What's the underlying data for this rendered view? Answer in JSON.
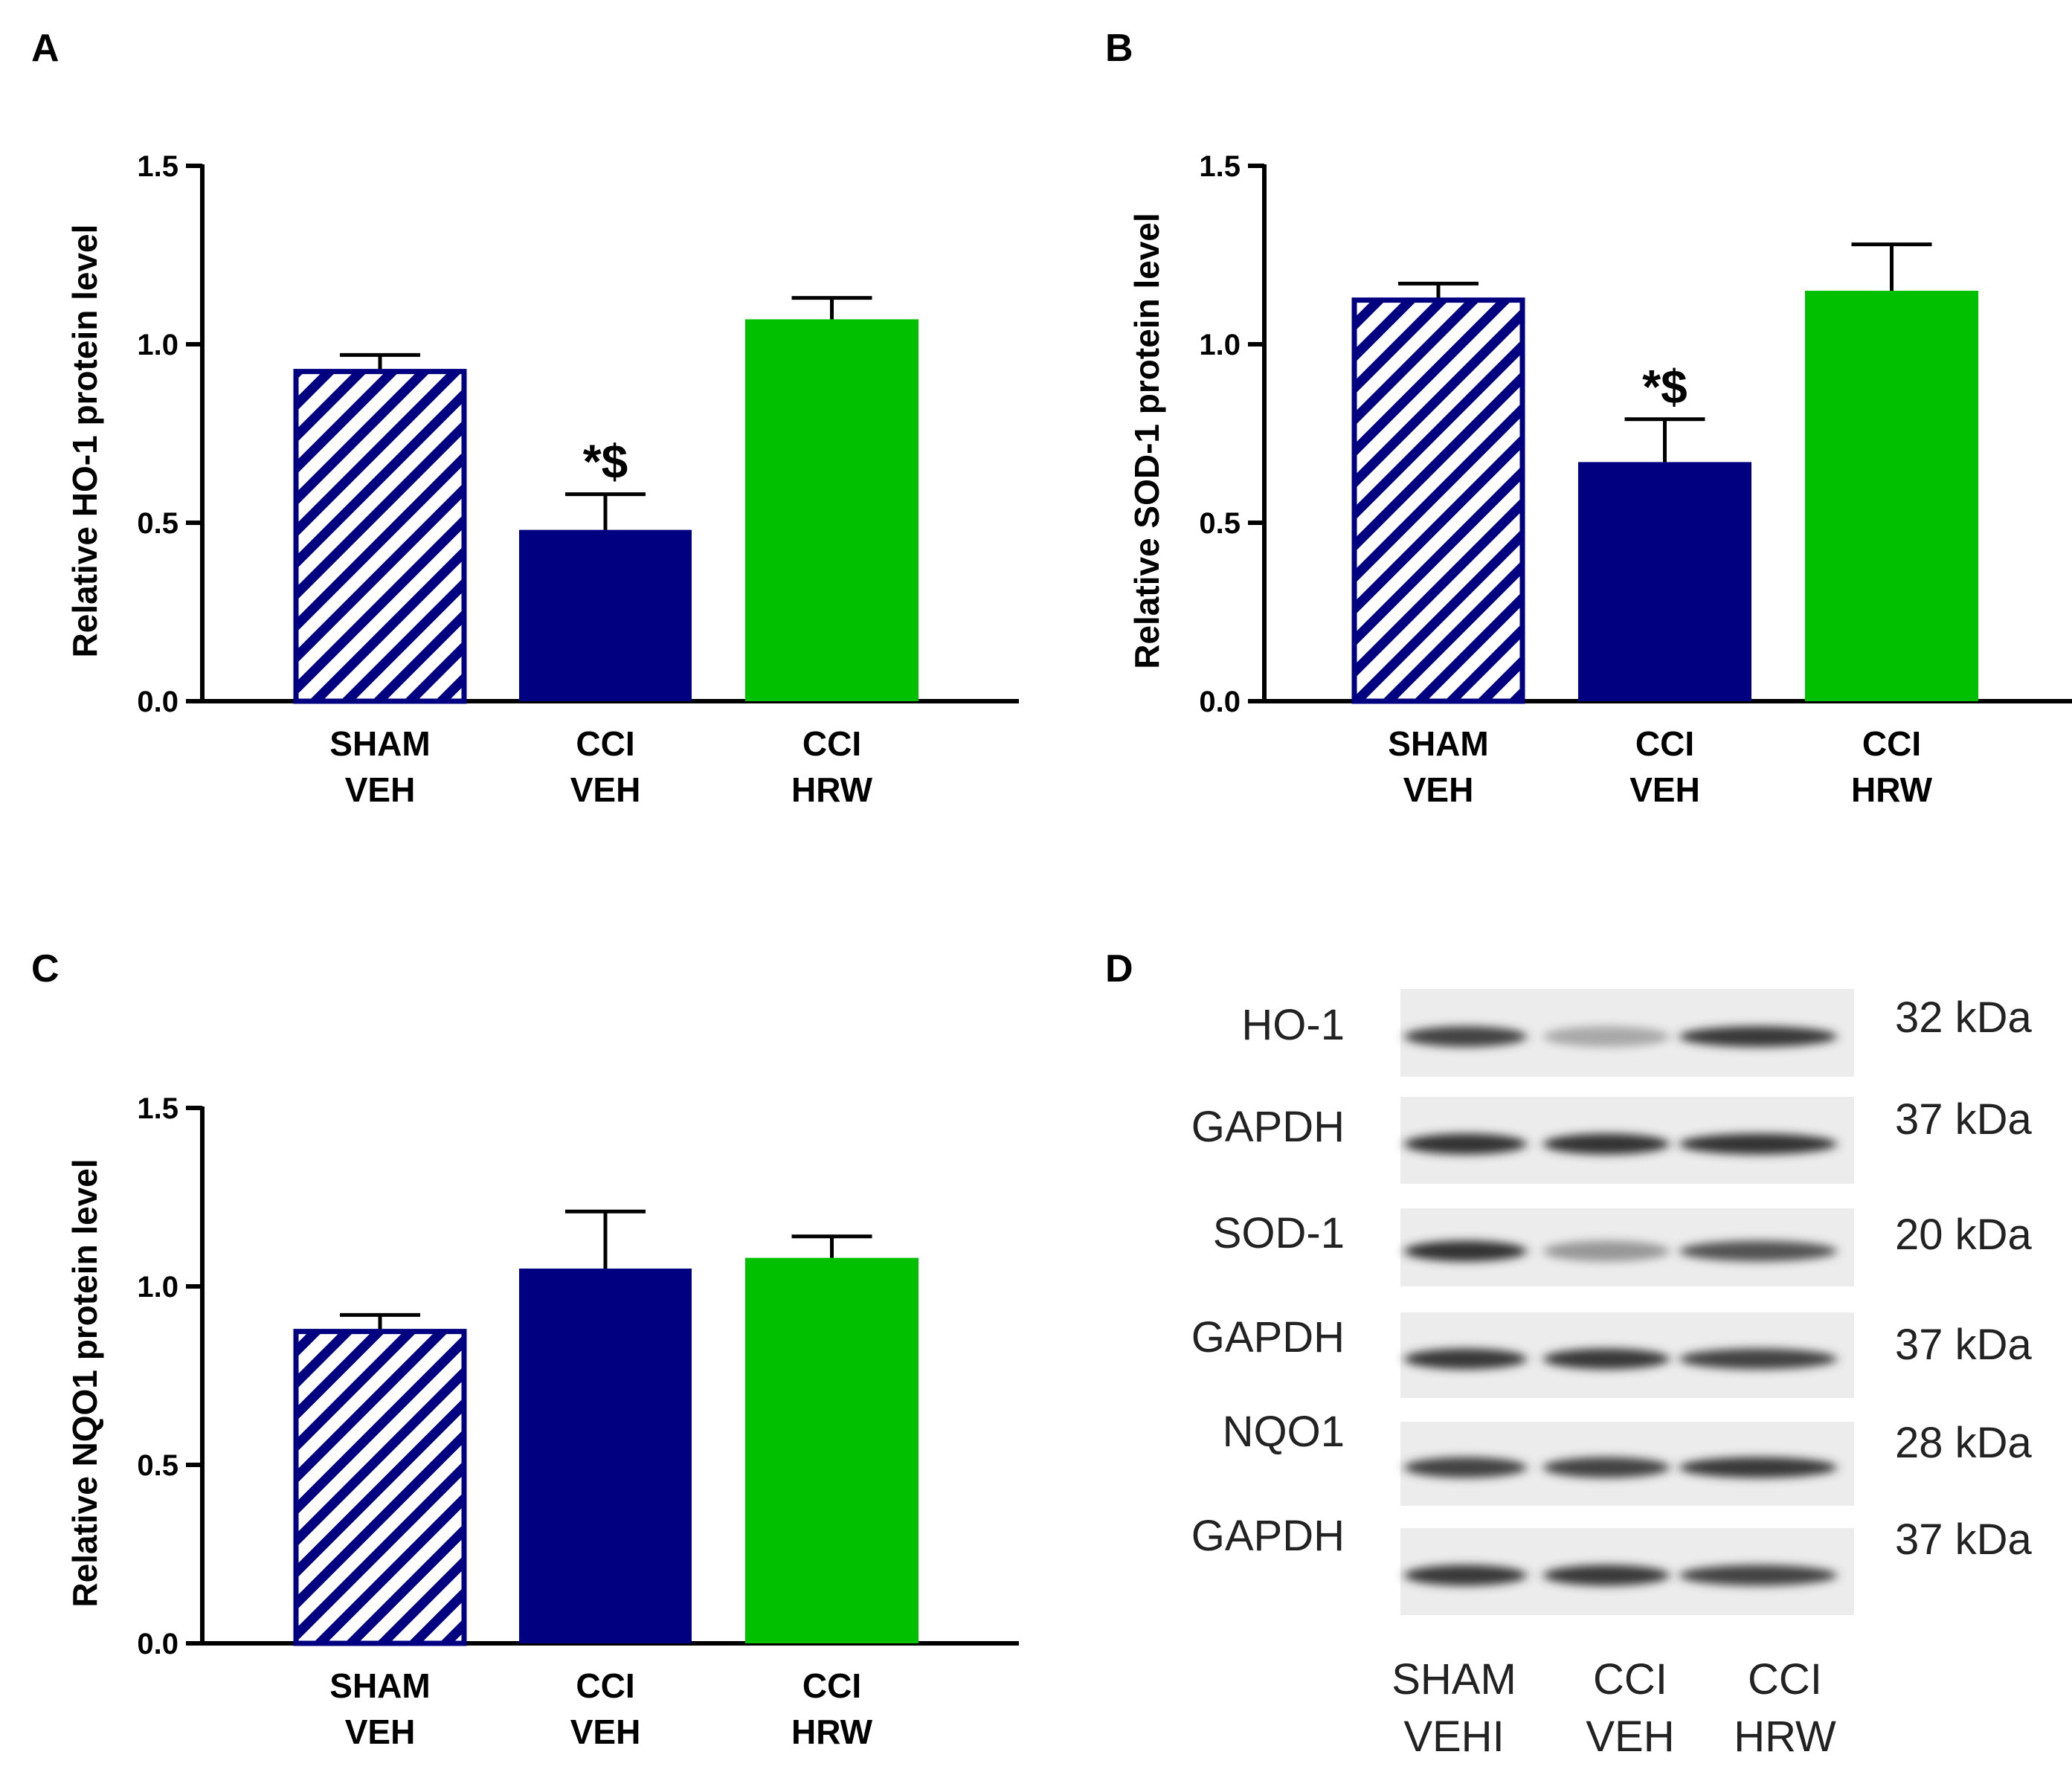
{
  "colors": {
    "navy": "#000080",
    "green": "#00c000",
    "hatch_bg": "#ffffff",
    "axis": "#000000"
  },
  "chart_data": [
    {
      "panel": "A",
      "type": "bar",
      "ylabel": "Relative HO-1 protein level",
      "ylim": [
        0,
        1.5
      ],
      "yticks": [
        "0.0",
        "0.5",
        "1.0",
        "1.5"
      ],
      "categories": [
        {
          "line1": "SHAM",
          "line2": "VEH"
        },
        {
          "line1": "CCI",
          "line2": "VEH"
        },
        {
          "line1": "CCI",
          "line2": "HRW"
        }
      ],
      "values": [
        0.93,
        0.48,
        1.07
      ],
      "errors": [
        0.04,
        0.1,
        0.06
      ],
      "styles": [
        "hatch",
        "navy",
        "green"
      ],
      "annotations": [
        "",
        "*$",
        ""
      ]
    },
    {
      "panel": "B",
      "type": "bar",
      "ylabel": "Relative SOD-1 protein level",
      "ylim": [
        0,
        1.5
      ],
      "yticks": [
        "0.0",
        "0.5",
        "1.0",
        "1.5"
      ],
      "categories": [
        {
          "line1": "SHAM",
          "line2": "VEH"
        },
        {
          "line1": "CCI",
          "line2": "VEH"
        },
        {
          "line1": "CCI",
          "line2": "HRW"
        }
      ],
      "values": [
        1.13,
        0.67,
        1.15
      ],
      "errors": [
        0.04,
        0.12,
        0.13
      ],
      "styles": [
        "hatch",
        "navy",
        "green"
      ],
      "annotations": [
        "",
        "*$",
        ""
      ]
    },
    {
      "panel": "C",
      "type": "bar",
      "ylabel": "Relative NQO1 protein level",
      "ylim": [
        0,
        1.5
      ],
      "yticks": [
        "0.0",
        "0.5",
        "1.0",
        "1.5"
      ],
      "categories": [
        {
          "line1": "SHAM",
          "line2": "VEH"
        },
        {
          "line1": "CCI",
          "line2": "VEH"
        },
        {
          "line1": "CCI",
          "line2": "HRW"
        }
      ],
      "values": [
        0.88,
        1.05,
        1.08
      ],
      "errors": [
        0.04,
        0.16,
        0.06
      ],
      "styles": [
        "hatch",
        "navy",
        "green"
      ],
      "annotations": [
        "",
        "",
        ""
      ]
    }
  ],
  "blot": {
    "panel": "D",
    "rows": [
      {
        "protein": "HO-1",
        "size": "32 kDa",
        "intensity": [
          0.85,
          0.25,
          0.9
        ]
      },
      {
        "protein": "GAPDH",
        "size": "37 kDa",
        "intensity": [
          0.95,
          0.95,
          0.95
        ]
      },
      {
        "protein": "SOD-1",
        "size": "20 kDa",
        "intensity": [
          0.95,
          0.35,
          0.75
        ]
      },
      {
        "protein": "GAPDH",
        "size": "37 kDa",
        "intensity": [
          0.9,
          0.9,
          0.85
        ]
      },
      {
        "protein": "NQO1",
        "size": "28 kDa",
        "intensity": [
          0.85,
          0.85,
          0.9
        ]
      },
      {
        "protein": "GAPDH",
        "size": "37 kDa",
        "intensity": [
          0.9,
          0.9,
          0.85
        ]
      }
    ],
    "lanes": [
      {
        "line1": "SHAM",
        "line2": "VEHI"
      },
      {
        "line1": "CCI",
        "line2": "VEH"
      },
      {
        "line1": "CCI",
        "line2": "HRW"
      }
    ]
  }
}
